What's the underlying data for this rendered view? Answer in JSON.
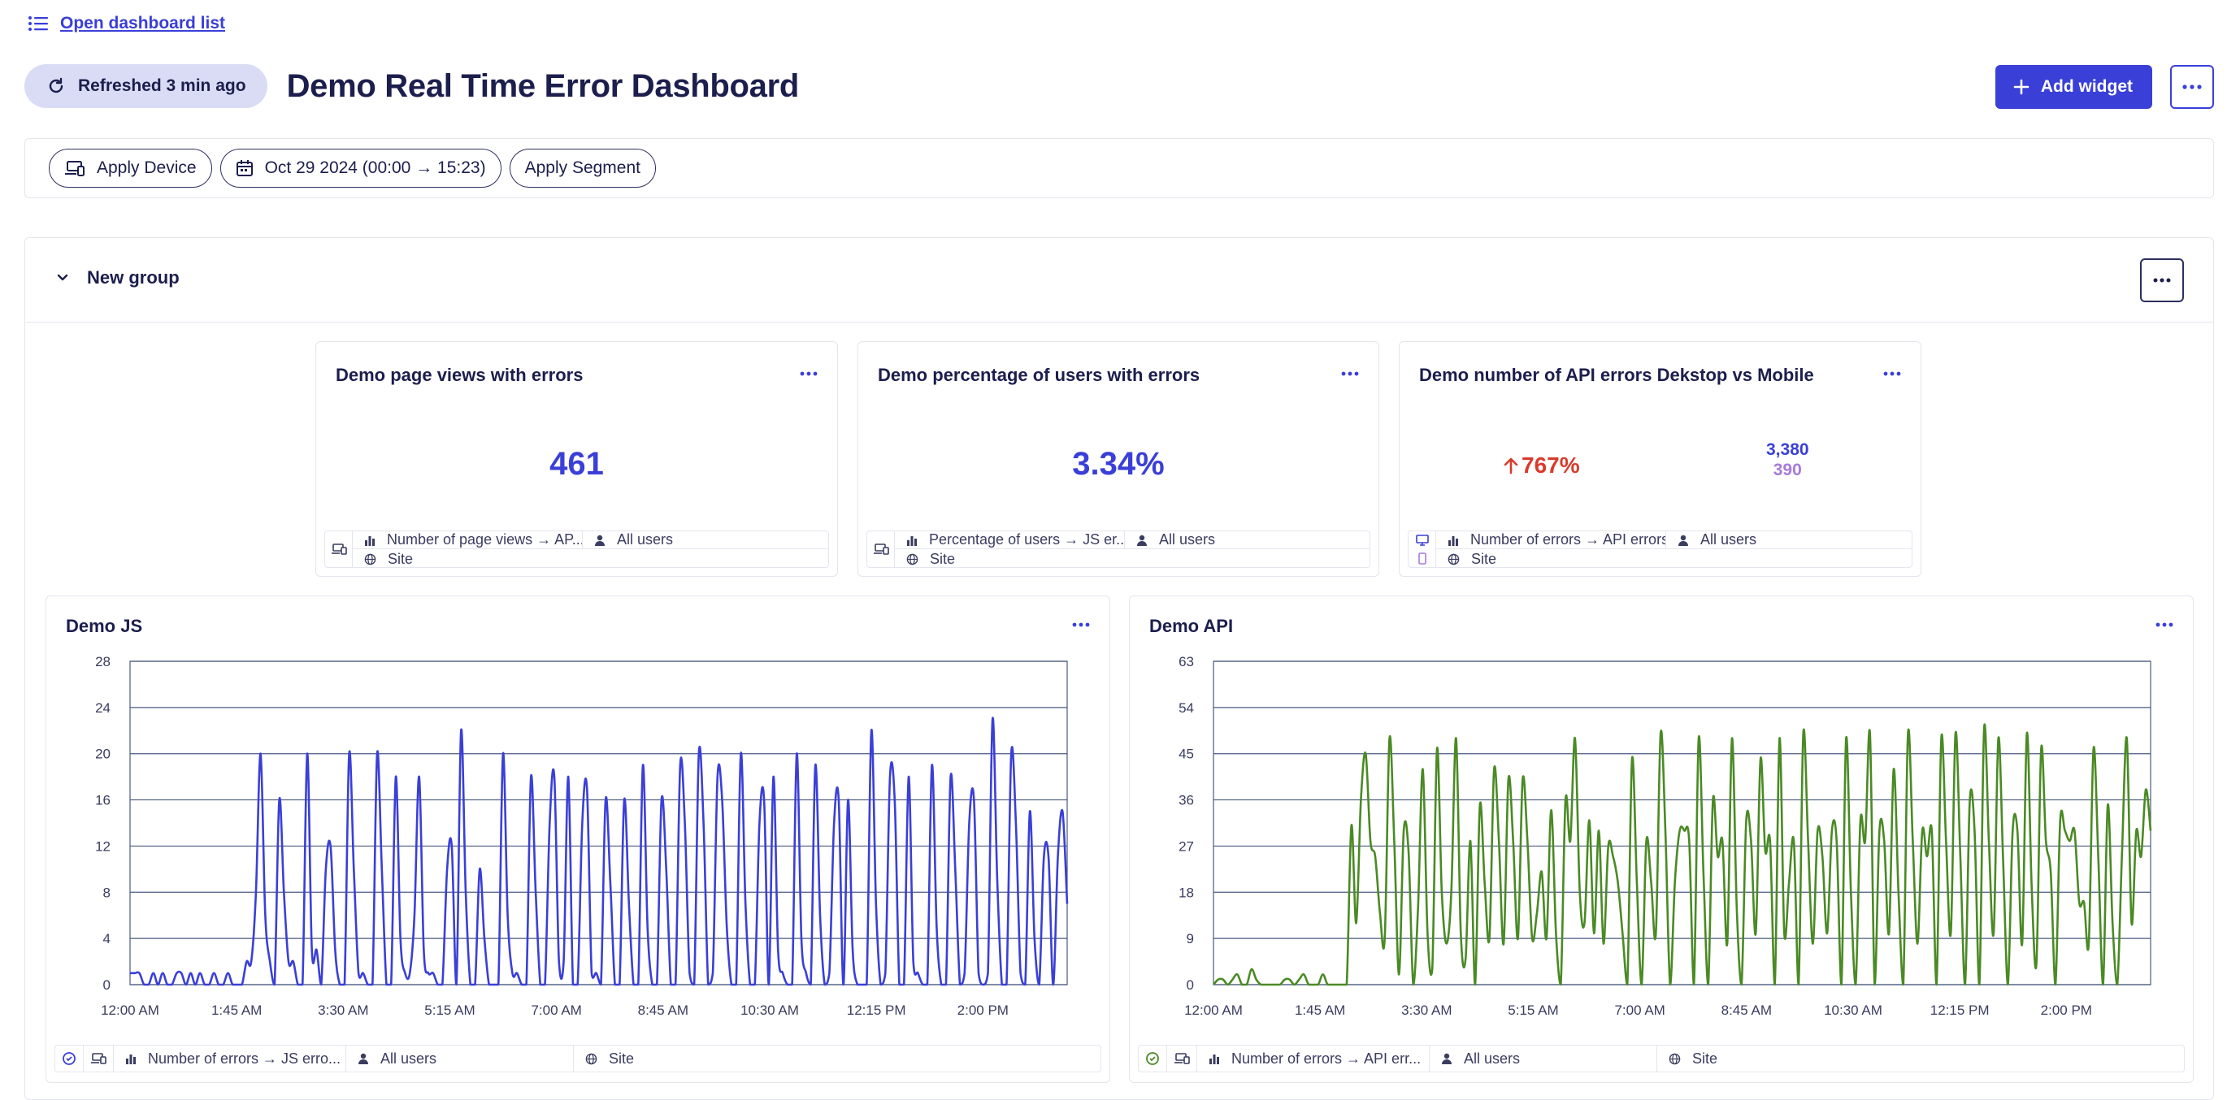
{
  "nav": {
    "open_list_label": "Open dashboard list"
  },
  "header": {
    "refreshed_label": "Refreshed 3 min ago",
    "title": "Demo Real Time Error Dashboard",
    "add_widget_label": "Add widget"
  },
  "filters": {
    "device_label": "Apply Device",
    "date_label": "Oct 29 2024 (00:00 → 15:23)",
    "segment_label": "Apply Segment"
  },
  "group": {
    "title": "New group"
  },
  "kpis": [
    {
      "title": "Demo page views with errors",
      "value": "461",
      "metric": "Number of page views → AP...",
      "users": "All users",
      "scope": "Site"
    },
    {
      "title": "Demo percentage of users with errors",
      "value": "3.34%",
      "metric": "Percentage of users → JS er...",
      "users": "All users",
      "scope": "Site"
    },
    {
      "title": "Demo number of API errors Dekstop vs Mobile",
      "change": "767%",
      "desktop_value": "3,380",
      "mobile_value": "390",
      "metric": "Number of errors → API errors",
      "users": "All users",
      "scope": "Site"
    }
  ],
  "charts": [
    {
      "title": "Demo JS",
      "metric": "Number of errors → JS erro...",
      "users": "All users",
      "scope": "Site",
      "color": "#3a3fd8",
      "chart_data": {
        "type": "line",
        "xlabels": [
          "12:00 AM",
          "1:45 AM",
          "3:30 AM",
          "5:15 AM",
          "7:00 AM",
          "8:45 AM",
          "10:30 AM",
          "12:15 PM",
          "2:00 PM"
        ],
        "x_range_minutes": [
          0,
          923
        ],
        "ylim": [
          0,
          28
        ],
        "yticks": [
          0,
          4,
          8,
          12,
          16,
          20,
          24,
          28
        ],
        "series": [
          {
            "name": "Number of errors",
            "values": [
              1,
              1,
              1,
              0,
              0,
              1,
              0,
              1,
              0,
              0,
              1,
              1,
              0,
              1,
              0,
              1,
              0,
              0,
              1,
              0,
              0,
              1,
              0,
              0,
              0,
              2,
              2,
              8,
              20,
              6,
              2,
              0,
              16,
              8,
              2,
              2,
              0,
              0,
              20,
              3,
              3,
              0,
              10,
              12,
              3,
              0,
              0,
              20,
              10,
              1,
              1,
              0,
              0,
              20,
              10,
              0,
              0,
              18,
              4,
              1,
              1,
              6,
              18,
              3,
              1,
              1,
              0,
              0,
              10,
              12,
              0,
              22,
              8,
              0,
              0,
              10,
              4,
              0,
              0,
              0,
              20,
              6,
              1,
              1,
              0,
              0,
              18,
              8,
              0,
              0,
              14,
              18,
              2,
              2,
              18,
              0,
              0,
              14,
              17,
              1,
              1,
              0,
              16,
              9,
              0,
              0,
              16,
              7,
              0,
              0,
              19,
              5,
              0,
              0,
              16,
              10,
              0,
              0,
              19,
              14,
              1,
              0,
              20,
              14,
              0,
              1,
              18,
              16,
              5,
              0,
              0,
              20,
              7,
              0,
              0,
              14,
              16,
              0,
              18,
              3,
              1,
              0,
              0,
              20,
              4,
              1,
              0,
              19,
              6,
              0,
              1,
              14,
              16,
              0,
              16,
              3,
              0,
              0,
              0,
              22,
              7,
              0,
              1,
              18,
              16,
              0,
              0,
              18,
              2,
              1,
              0,
              0,
              19,
              5,
              0,
              0,
              18,
              10,
              0,
              1,
              14,
              16,
              1,
              0,
              1,
              23,
              9,
              0,
              0,
              20,
              14,
              1,
              0,
              15,
              4,
              0,
              11,
              11,
              0,
              11,
              15,
              7
            ]
          }
        ]
      }
    },
    {
      "title": "Demo API",
      "metric": "Number of errors → API err...",
      "users": "All users",
      "scope": "Site",
      "color": "#4a8a24",
      "chart_data": {
        "type": "line",
        "xlabels": [
          "12:00 AM",
          "1:45 AM",
          "3:30 AM",
          "5:15 AM",
          "7:00 AM",
          "8:45 AM",
          "10:30 AM",
          "12:15 PM",
          "2:00 PM"
        ],
        "x_range_minutes": [
          0,
          923
        ],
        "ylim": [
          0,
          63
        ],
        "yticks": [
          0,
          9,
          18,
          27,
          36,
          45,
          54,
          63
        ],
        "series": [
          {
            "name": "Number of errors",
            "values": [
              0,
              1,
              1,
              0,
              1,
              2,
              0,
              0,
              3,
              1,
              0,
              0,
              0,
              0,
              0,
              1,
              1,
              0,
              1,
              2,
              0,
              0,
              0,
              2,
              0,
              0,
              0,
              0,
              0,
              31,
              12,
              36,
              45,
              28,
              25,
              14,
              9,
              48,
              28,
              2,
              30,
              26,
              0,
              15,
              42,
              10,
              3,
              46,
              18,
              8,
              18,
              48,
              10,
              5,
              28,
              0,
              35,
              20,
              9,
              42,
              28,
              8,
              40,
              28,
              9,
              40,
              28,
              9,
              14,
              22,
              9,
              34,
              10,
              0,
              36,
              28,
              48,
              18,
              12,
              32,
              10,
              30,
              8,
              27,
              25,
              20,
              10,
              0,
              44,
              20,
              0,
              28,
              20,
              10,
              49,
              30,
              0,
              20,
              30,
              30,
              28,
              0,
              48,
              22,
              0,
              36,
              25,
              28,
              8,
              48,
              15,
              0,
              32,
              28,
              10,
              44,
              26,
              28,
              0,
              48,
              10,
              20,
              28,
              0,
              49,
              28,
              8,
              30,
              25,
              10,
              30,
              28,
              0,
              48,
              18,
              0,
              32,
              28,
              49,
              0,
              30,
              28,
              10,
              42,
              18,
              0,
              49,
              28,
              8,
              30,
              25,
              30,
              0,
              48,
              28,
              10,
              49,
              25,
              0,
              36,
              30,
              0,
              50,
              28,
              10,
              48,
              24,
              0,
              30,
              30,
              8,
              49,
              19,
              4,
              46,
              28,
              22,
              0,
              32,
              30,
              28,
              30,
              16,
              16,
              8,
              46,
              25,
              0,
              35,
              12,
              0,
              26,
              48,
              12,
              30,
              25,
              38,
              30
            ]
          }
        ]
      }
    }
  ]
}
